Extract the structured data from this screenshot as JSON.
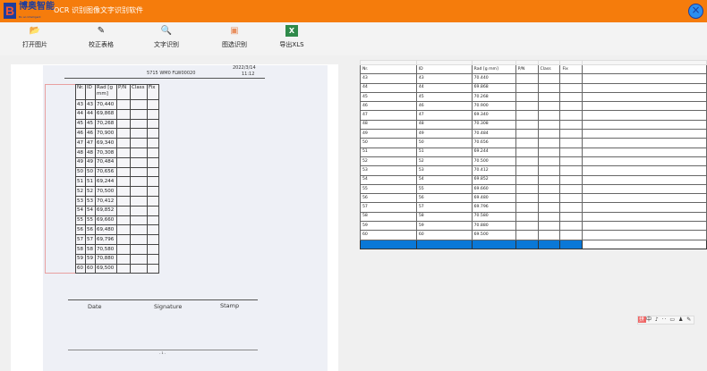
{
  "app": {
    "brand": "博奥智能",
    "brand_sub": "Bo ao Intelligent",
    "title": "OCR 识别图像文字识别软件",
    "close_icon": "close-icon"
  },
  "toolbar": [
    {
      "label": "打开图片",
      "icon": "folder-icon",
      "glyph": "📂"
    },
    {
      "label": "校正表格",
      "icon": "table-correct-icon",
      "glyph": "✎"
    },
    {
      "label": "文字识别",
      "icon": "magnify-icon",
      "glyph": "🔍"
    },
    {
      "label": "图选识别",
      "icon": "ocr-select-icon",
      "glyph": "▣"
    },
    {
      "label": "导出XLS",
      "icon": "excel-icon",
      "glyph": "X"
    }
  ],
  "document": {
    "header_center": "5715 WM0 FLW00020",
    "header_date": "2022/3/14",
    "header_time": "11:12",
    "columns": [
      "Nr.",
      "ID",
      "Rad [g mm]",
      "P/N",
      "Class",
      "Fix"
    ],
    "rows": [
      [
        "43",
        "43",
        "70,440"
      ],
      [
        "44",
        "44",
        "69,868"
      ],
      [
        "45",
        "45",
        "70,268"
      ],
      [
        "46",
        "46",
        "70,900"
      ],
      [
        "47",
        "47",
        "69,340"
      ],
      [
        "48",
        "48",
        "70,308"
      ],
      [
        "49",
        "49",
        "70,484"
      ],
      [
        "50",
        "50",
        "70,656"
      ],
      [
        "51",
        "51",
        "69,244"
      ],
      [
        "52",
        "52",
        "70,500"
      ],
      [
        "53",
        "53",
        "70,412"
      ],
      [
        "54",
        "54",
        "69,852"
      ],
      [
        "55",
        "55",
        "69,660"
      ],
      [
        "56",
        "56",
        "69,480"
      ],
      [
        "57",
        "57",
        "69,796"
      ],
      [
        "58",
        "58",
        "70,580"
      ],
      [
        "59",
        "59",
        "70,880"
      ],
      [
        "60",
        "60",
        "69,500"
      ]
    ],
    "footer": [
      "Date",
      "Signature",
      "Stamp"
    ],
    "page": "- 1 -"
  },
  "grid": {
    "columns": [
      "Nr.",
      "ID",
      "Rad [g mm]",
      "P/N",
      "Class",
      "Fix"
    ],
    "rows": [
      [
        "43",
        "43",
        "70.440"
      ],
      [
        "44",
        "44",
        "69.868"
      ],
      [
        "45",
        "45",
        "70.268"
      ],
      [
        "46",
        "46",
        "70.900"
      ],
      [
        "47",
        "47",
        "69.340"
      ],
      [
        "48",
        "48",
        "70.308"
      ],
      [
        "49",
        "49",
        "70.484"
      ],
      [
        "50",
        "50",
        "70.656"
      ],
      [
        "51",
        "51",
        "69.244"
      ],
      [
        "52",
        "52",
        "70.500"
      ],
      [
        "53",
        "53",
        "70.412"
      ],
      [
        "54",
        "54",
        "69.852"
      ],
      [
        "55",
        "55",
        "69.660"
      ],
      [
        "56",
        "56",
        "69.480"
      ],
      [
        "57",
        "57",
        "69.796"
      ],
      [
        "58",
        "58",
        "70.580"
      ],
      [
        "59",
        "59",
        "70.880"
      ],
      [
        "60",
        "60",
        "69.500"
      ]
    ],
    "selected_color": "#0a78d7"
  },
  "ime": {
    "glyphs": "中 ♪ ·· ▭ ♟ ✎"
  }
}
